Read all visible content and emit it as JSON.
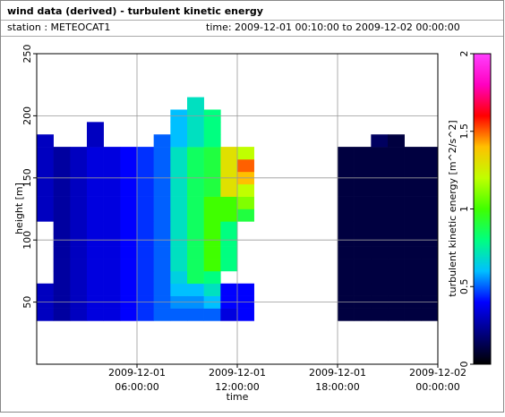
{
  "chart_data": {
    "type": "heatmap",
    "title": "wind data (derived) - turbulent kinetic energy",
    "station": "station : METEOCAT1",
    "time_range": "time: 2009-12-01 00:10:00 to 2009-12-02 00:00:00",
    "x_label": "time",
    "y_label": "height [m]",
    "colorbar_label": "turbulent kinetic energy [m^2/s^2]",
    "xlim": [
      0,
      24
    ],
    "xticks": [
      {
        "value": 6,
        "label": "2009-12-01 06:00:00"
      },
      {
        "value": 12,
        "label": "2009-12-01 12:00:00"
      },
      {
        "value": 18,
        "label": "2009-12-01 18:00:00"
      },
      {
        "value": 24,
        "label": "2009-12-02 00:00:00"
      }
    ],
    "ylim": [
      0,
      250
    ],
    "yticks": [
      50,
      100,
      150,
      200,
      250
    ],
    "clim": [
      0,
      2
    ],
    "cticks": [
      0,
      0.5,
      1,
      1.5,
      2
    ],
    "colormap": [
      "#000000",
      "#000080",
      "#0000ff",
      "#00c0ff",
      "#00ff80",
      "#40ff00",
      "#c0ff00",
      "#ffc000",
      "#ff0000",
      "#ff00c0",
      "#ff40ff"
    ],
    "grid": true,
    "x": [
      0.5,
      1.5,
      2.5,
      3.5,
      4.5,
      5.5,
      6.5,
      7.5,
      8.5,
      9.5,
      10.5,
      11.5,
      12.5,
      13.5,
      14.5,
      15.5,
      16.5,
      17.5,
      18.5,
      19.5,
      20.5,
      21.5,
      22.5,
      23.5
    ],
    "y": [
      40,
      50,
      60,
      70,
      80,
      90,
      100,
      110,
      120,
      130,
      140,
      150,
      160,
      170,
      180,
      190,
      200,
      210
    ],
    "values": [
      [
        0.3,
        0.25,
        0.3,
        0.35,
        0.35,
        0.4,
        0.45,
        0.5,
        0.5,
        0.5,
        0.5,
        0.35,
        0.4,
        null,
        null,
        null,
        null,
        null,
        0.1,
        0.1,
        0.1,
        0.1,
        0.1,
        0.1
      ],
      [
        0.3,
        0.25,
        0.3,
        0.35,
        0.35,
        0.4,
        0.45,
        0.5,
        0.55,
        0.55,
        0.6,
        0.4,
        0.4,
        null,
        null,
        null,
        null,
        null,
        0.1,
        0.1,
        0.1,
        0.1,
        0.1,
        0.1
      ],
      [
        0.3,
        0.25,
        0.3,
        0.35,
        0.35,
        0.4,
        0.45,
        0.5,
        0.6,
        0.6,
        0.7,
        0.4,
        0.4,
        null,
        null,
        null,
        null,
        null,
        0.1,
        0.1,
        0.1,
        0.1,
        0.1,
        0.1
      ],
      [
        null,
        0.25,
        0.3,
        0.35,
        0.35,
        0.4,
        0.45,
        0.5,
        0.65,
        0.85,
        0.8,
        null,
        null,
        null,
        null,
        null,
        null,
        null,
        0.1,
        0.1,
        0.1,
        0.1,
        0.1,
        0.1
      ],
      [
        null,
        0.25,
        0.3,
        0.35,
        0.35,
        0.4,
        0.45,
        0.5,
        0.7,
        0.85,
        1.0,
        0.8,
        null,
        null,
        null,
        null,
        null,
        null,
        0.1,
        0.1,
        0.1,
        0.1,
        0.1,
        0.1
      ],
      [
        null,
        0.25,
        0.3,
        0.35,
        0.35,
        0.4,
        0.45,
        0.5,
        0.7,
        0.85,
        1.0,
        0.8,
        null,
        null,
        null,
        null,
        null,
        null,
        0.1,
        0.1,
        0.1,
        0.1,
        0.1,
        0.1
      ],
      [
        null,
        0.25,
        0.3,
        0.35,
        0.35,
        0.4,
        0.45,
        0.5,
        0.7,
        0.85,
        1.0,
        0.8,
        null,
        null,
        null,
        null,
        null,
        null,
        0.1,
        0.1,
        0.1,
        0.1,
        0.1,
        0.1
      ],
      [
        null,
        0.25,
        0.3,
        0.35,
        0.35,
        0.4,
        0.45,
        0.5,
        0.7,
        0.85,
        1.0,
        0.8,
        null,
        null,
        null,
        null,
        null,
        null,
        0.1,
        0.1,
        0.1,
        0.1,
        0.1,
        0.1
      ],
      [
        0.3,
        0.25,
        0.3,
        0.35,
        0.35,
        0.4,
        0.45,
        0.5,
        0.7,
        0.85,
        1.0,
        1.0,
        0.9,
        null,
        null,
        null,
        null,
        null,
        0.1,
        0.1,
        0.1,
        0.1,
        0.1,
        0.1
      ],
      [
        0.3,
        0.25,
        0.3,
        0.35,
        0.35,
        0.4,
        0.45,
        0.5,
        0.7,
        0.85,
        1.0,
        1.0,
        1.1,
        null,
        null,
        null,
        null,
        null,
        0.1,
        0.1,
        0.1,
        0.1,
        0.1,
        0.1
      ],
      [
        0.3,
        0.25,
        0.3,
        0.35,
        0.35,
        0.4,
        0.45,
        0.5,
        0.7,
        0.85,
        0.9,
        1.3,
        1.2,
        null,
        null,
        null,
        null,
        null,
        0.1,
        0.1,
        0.1,
        0.1,
        0.1,
        0.1
      ],
      [
        0.3,
        0.25,
        0.3,
        0.35,
        0.35,
        0.4,
        0.45,
        0.5,
        0.7,
        0.85,
        0.9,
        1.3,
        1.4,
        null,
        null,
        null,
        null,
        null,
        0.1,
        0.1,
        0.1,
        0.1,
        0.1,
        0.1
      ],
      [
        0.3,
        0.25,
        0.3,
        0.35,
        0.35,
        0.4,
        0.45,
        0.5,
        0.7,
        0.85,
        0.9,
        1.3,
        1.5,
        null,
        null,
        null,
        null,
        null,
        0.1,
        0.1,
        0.1,
        0.1,
        0.1,
        0.1
      ],
      [
        0.3,
        0.25,
        0.3,
        0.35,
        0.35,
        0.4,
        0.45,
        0.5,
        0.7,
        0.85,
        0.9,
        1.3,
        1.2,
        null,
        null,
        null,
        null,
        null,
        0.1,
        0.1,
        0.1,
        0.1,
        0.1,
        0.1
      ],
      [
        0.3,
        null,
        null,
        0.3,
        null,
        null,
        null,
        0.5,
        0.6,
        0.7,
        0.8,
        null,
        null,
        null,
        null,
        null,
        null,
        null,
        null,
        null,
        0.15,
        0.1,
        null,
        null
      ],
      [
        null,
        null,
        null,
        0.3,
        null,
        null,
        null,
        null,
        0.6,
        0.7,
        0.8,
        null,
        null,
        null,
        null,
        null,
        null,
        null,
        null,
        null,
        null,
        null,
        null,
        null
      ],
      [
        null,
        null,
        null,
        null,
        null,
        null,
        null,
        null,
        0.6,
        0.7,
        0.8,
        null,
        null,
        null,
        null,
        null,
        null,
        null,
        null,
        null,
        null,
        null,
        null,
        null
      ],
      [
        null,
        null,
        null,
        null,
        null,
        null,
        null,
        null,
        null,
        0.7,
        null,
        null,
        null,
        null,
        null,
        null,
        null,
        null,
        null,
        null,
        null,
        null,
        null,
        null
      ]
    ]
  }
}
